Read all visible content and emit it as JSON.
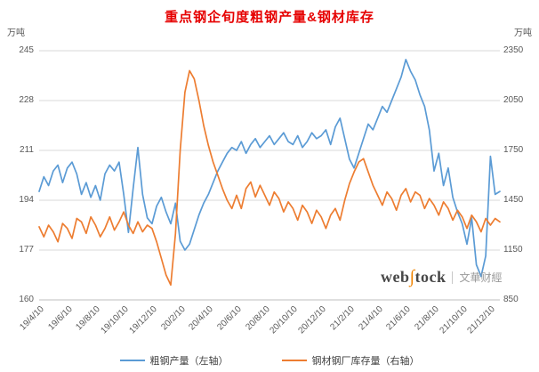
{
  "chart_data": {
    "type": "line",
    "title": "重点钢企旬度粗钢产量&钢材库存",
    "left_axis": {
      "label": "万吨",
      "ticks": [
        245,
        228,
        211,
        194,
        177,
        160
      ],
      "lim": [
        160,
        245
      ]
    },
    "right_axis": {
      "label": "万吨",
      "ticks": [
        2350,
        2050,
        1750,
        1450,
        1150,
        850
      ],
      "lim": [
        850,
        2350
      ]
    },
    "x_axis": {
      "tick_labels": [
        "19/4/10",
        "19/6/10",
        "19/8/10",
        "19/10/10",
        "19/12/10",
        "20/2/10",
        "20/4/10",
        "20/6/10",
        "20/8/10",
        "20/10/10",
        "20/12/10",
        "21/2/10",
        "21/4/10",
        "21/6/10",
        "21/8/10",
        "21/10/10",
        "21/12/10"
      ],
      "tick_every": 6
    },
    "grid": true,
    "legend_position": "bottom",
    "series": [
      {
        "name": "粗钢产量（左轴）",
        "axis": "left",
        "color": "#5b9bd5",
        "values": [
          197,
          202,
          199,
          204,
          206,
          200,
          205,
          207,
          203,
          196,
          200,
          195,
          199,
          194,
          203,
          206,
          204,
          207,
          196,
          183,
          198,
          212,
          196,
          188,
          186,
          192,
          195,
          190,
          186,
          193,
          180,
          177,
          179,
          184,
          189,
          193,
          196,
          200,
          204,
          207,
          210,
          212,
          211,
          214,
          210,
          213,
          215,
          212,
          214,
          216,
          213,
          215,
          217,
          214,
          213,
          216,
          212,
          214,
          217,
          215,
          216,
          218,
          213,
          219,
          222,
          215,
          208,
          205,
          210,
          215,
          220,
          218,
          222,
          226,
          224,
          228,
          232,
          236,
          242,
          238,
          235,
          230,
          226,
          218,
          204,
          210,
          199,
          205,
          195,
          190,
          186,
          179,
          188,
          172,
          168,
          175,
          209,
          196,
          197
        ]
      },
      {
        "name": "钢材钢厂库存量（右轴）",
        "axis": "right",
        "color": "#ed7d31",
        "values": [
          1290,
          1230,
          1300,
          1260,
          1200,
          1310,
          1280,
          1220,
          1340,
          1320,
          1250,
          1350,
          1300,
          1230,
          1280,
          1350,
          1270,
          1320,
          1380,
          1300,
          1250,
          1320,
          1260,
          1300,
          1280,
          1200,
          1100,
          1000,
          940,
          1250,
          1750,
          2100,
          2230,
          2180,
          2050,
          1900,
          1780,
          1680,
          1600,
          1520,
          1450,
          1400,
          1480,
          1400,
          1520,
          1560,
          1470,
          1540,
          1480,
          1420,
          1500,
          1460,
          1380,
          1440,
          1400,
          1330,
          1420,
          1380,
          1310,
          1390,
          1350,
          1280,
          1360,
          1400,
          1330,
          1450,
          1550,
          1620,
          1680,
          1700,
          1620,
          1540,
          1480,
          1420,
          1500,
          1460,
          1390,
          1480,
          1520,
          1440,
          1500,
          1480,
          1400,
          1460,
          1420,
          1360,
          1440,
          1400,
          1330,
          1390,
          1350,
          1280,
          1360,
          1320,
          1260,
          1340,
          1300,
          1340,
          1320
        ]
      }
    ],
    "colors": {
      "title": "#e60000",
      "grid": "#d9d9d9",
      "axis_line": "#bfbfbf",
      "axis_text": "#595959"
    }
  },
  "watermark": {
    "brand_parts": [
      "web",
      "∫",
      "tock"
    ],
    "caption": "文華财經"
  }
}
